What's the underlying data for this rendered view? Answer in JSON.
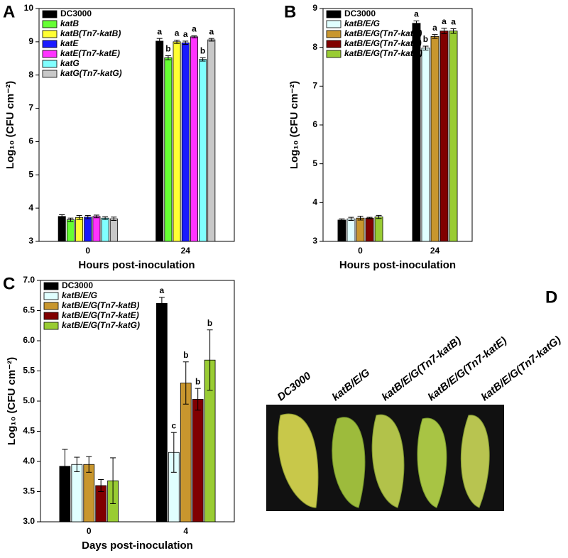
{
  "chart_data": [
    {
      "type": "bar",
      "panel": "A",
      "ylabel": "Log₁₀ (CFU cm⁻²)",
      "xlabel": "Hours post-inoculation",
      "categories": [
        "0",
        "24"
      ],
      "ylim": [
        3,
        10
      ],
      "yticks": [
        3,
        4,
        5,
        6,
        7,
        8,
        9,
        10
      ],
      "series": [
        {
          "name": "DC3000",
          "color": "#000000",
          "values": [
            3.75,
            9.02
          ],
          "errors": [
            0.05,
            0.08
          ],
          "letters": [
            null,
            "a"
          ]
        },
        {
          "name": "katB",
          "color": "#66ff33",
          "values": [
            3.65,
            8.52
          ],
          "errors": [
            0.05,
            0.06
          ],
          "letters": [
            null,
            "b"
          ]
        },
        {
          "name": "katB(Tn7-katB)",
          "color": "#ffff33",
          "values": [
            3.72,
            9.0
          ],
          "errors": [
            0.06,
            0.05
          ],
          "letters": [
            null,
            "a"
          ]
        },
        {
          "name": "katE",
          "color": "#1a1aff",
          "values": [
            3.73,
            8.97
          ],
          "errors": [
            0.05,
            0.05
          ],
          "letters": [
            null,
            "a"
          ]
        },
        {
          "name": "katE(Tn7-katE)",
          "color": "#ff33ff",
          "values": [
            3.75,
            9.15
          ],
          "errors": [
            0.04,
            0.03
          ],
          "letters": [
            null,
            "a"
          ]
        },
        {
          "name": "katG",
          "color": "#80ffff",
          "values": [
            3.7,
            8.47
          ],
          "errors": [
            0.04,
            0.05
          ],
          "letters": [
            null,
            "b"
          ]
        },
        {
          "name": "katG(Tn7-katG)",
          "color": "#c8c8c8",
          "values": [
            3.68,
            9.06
          ],
          "errors": [
            0.05,
            0.04
          ],
          "letters": [
            null,
            "a"
          ]
        }
      ]
    },
    {
      "type": "bar",
      "panel": "B",
      "ylabel": "Log₁₀ (CFU cm⁻²)",
      "xlabel": "Hours post-inoculation",
      "categories": [
        "0",
        "24"
      ],
      "ylim": [
        3,
        9
      ],
      "yticks": [
        3,
        4,
        5,
        6,
        7,
        8,
        9
      ],
      "series": [
        {
          "name": "DC3000",
          "color": "#000000",
          "values": [
            3.55,
            8.62
          ],
          "errors": [
            0.03,
            0.06
          ],
          "letters": [
            null,
            "a"
          ]
        },
        {
          "name": "katB/E/G",
          "color": "#e0ffff",
          "values": [
            3.58,
            7.98
          ],
          "errors": [
            0.04,
            0.05
          ],
          "letters": [
            null,
            "b"
          ]
        },
        {
          "name": "katB/E/G(Tn7-katB)",
          "color": "#c8962e",
          "values": [
            3.6,
            8.28
          ],
          "errors": [
            0.05,
            0.05
          ],
          "letters": [
            null,
            "a"
          ]
        },
        {
          "name": "katB/E/G(Tn7-katE)",
          "color": "#800000",
          "values": [
            3.6,
            8.42
          ],
          "errors": [
            0.02,
            0.07
          ],
          "letters": [
            null,
            "a"
          ]
        },
        {
          "name": "katB/E/G(Tn7-katG)",
          "color": "#99cc33",
          "values": [
            3.63,
            8.42
          ],
          "errors": [
            0.04,
            0.06
          ],
          "letters": [
            null,
            "a"
          ]
        }
      ]
    },
    {
      "type": "bar",
      "panel": "C",
      "ylabel": "Log₁₀ (CFU cm⁻²)",
      "xlabel": "Days post-inoculation",
      "categories": [
        "0",
        "4"
      ],
      "ylim": [
        3,
        7
      ],
      "yticks": [
        {
          "value": 3,
          "label": "3.0"
        },
        3.5,
        {
          "value": 4,
          "label": "4.0"
        },
        4.5,
        {
          "value": 5,
          "label": "5.0"
        },
        5.5,
        {
          "value": 6,
          "label": "6.0"
        },
        6.5,
        {
          "value": 7,
          "label": "7.0"
        }
      ],
      "series": [
        {
          "name": "DC3000",
          "color": "#000000",
          "values": [
            3.92,
            6.62
          ],
          "errors": [
            0.28,
            0.1
          ],
          "letters": [
            null,
            "a"
          ]
        },
        {
          "name": "katB/E/G",
          "color": "#e0ffff",
          "values": [
            3.95,
            4.15
          ],
          "errors": [
            0.12,
            0.33
          ],
          "letters": [
            null,
            "c"
          ]
        },
        {
          "name": "katB/E/G(Tn7-katB)",
          "color": "#c8962e",
          "values": [
            3.95,
            5.3
          ],
          "errors": [
            0.13,
            0.35
          ],
          "letters": [
            null,
            "b"
          ]
        },
        {
          "name": "katB/E/G(Tn7-katE)",
          "color": "#800000",
          "values": [
            3.6,
            5.03
          ],
          "errors": [
            0.1,
            0.18
          ],
          "letters": [
            null,
            "b"
          ]
        },
        {
          "name": "katB/E/G(Tn7-katG)",
          "color": "#99cc33",
          "values": [
            3.68,
            5.68
          ],
          "errors": [
            0.38,
            0.5
          ],
          "letters": [
            null,
            "b"
          ]
        }
      ]
    }
  ],
  "panel_d": {
    "panel": "D",
    "labels": [
      "DC3000",
      "katB/E/G",
      "katB/E/G(Tn7-katB)",
      "katB/E/G(Tn7-katE)",
      "katB/E/G(Tn7-katG)"
    ]
  }
}
